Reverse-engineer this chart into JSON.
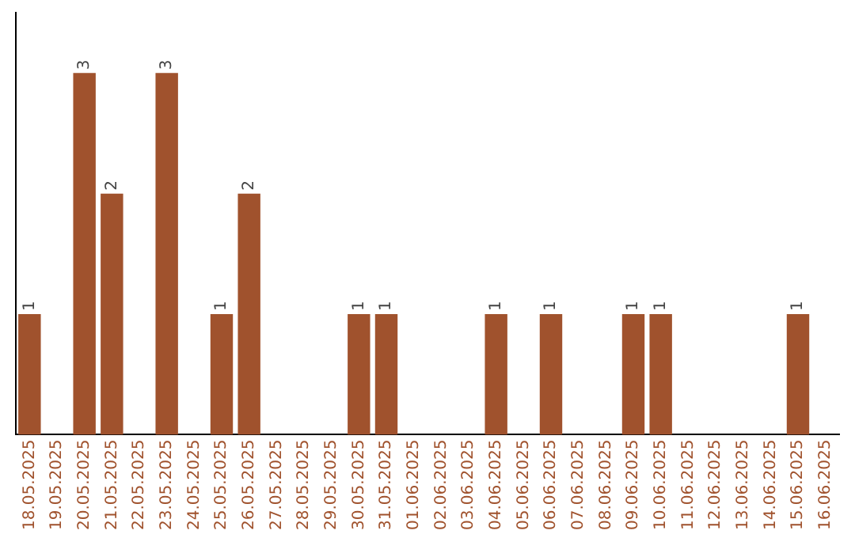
{
  "chart_data": {
    "type": "bar",
    "categories": [
      "18.05.2025",
      "19.05.2025",
      "20.05.2025",
      "21.05.2025",
      "22.05.2025",
      "23.05.2025",
      "24.05.2025",
      "25.05.2025",
      "26.05.2025",
      "27.05.2025",
      "28.05.2025",
      "29.05.2025",
      "30.05.2025",
      "31.05.2025",
      "01.06.2025",
      "02.06.2025",
      "03.06.2025",
      "04.06.2025",
      "05.06.2025",
      "06.06.2025",
      "07.06.2025",
      "08.06.2025",
      "09.06.2025",
      "10.06.2025",
      "11.06.2025",
      "12.06.2025",
      "13.06.2025",
      "14.06.2025",
      "15.06.2025",
      "16.06.2025"
    ],
    "values": [
      1,
      0,
      3,
      2,
      0,
      3,
      0,
      1,
      2,
      0,
      0,
      0,
      1,
      1,
      0,
      0,
      0,
      1,
      0,
      1,
      0,
      0,
      1,
      1,
      0,
      0,
      0,
      0,
      1,
      0
    ],
    "value_labels": [
      "1",
      null,
      "3",
      "2",
      null,
      "3",
      null,
      "1",
      "2",
      null,
      null,
      null,
      "1",
      "1",
      null,
      null,
      null,
      "1",
      null,
      "1",
      null,
      null,
      "1",
      "1",
      null,
      null,
      null,
      null,
      "1",
      null
    ],
    "color": "#a0522d",
    "grid": false,
    "legend": false,
    "tick_labels": "x"
  }
}
